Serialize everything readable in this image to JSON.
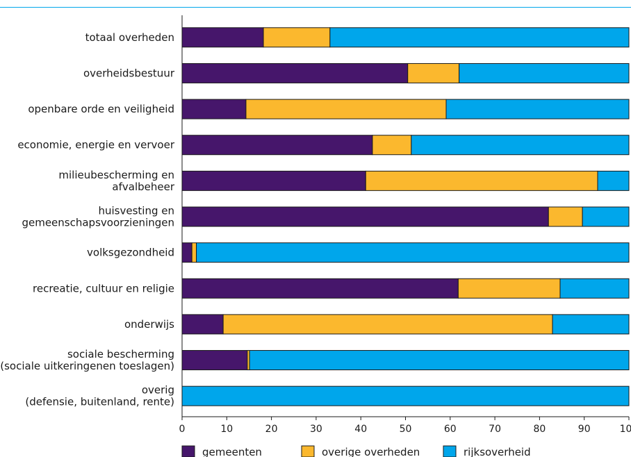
{
  "chart_data": {
    "type": "bar",
    "orientation": "horizontal",
    "stacked": true,
    "categories": [
      [
        "totaal overheden"
      ],
      [
        "overheidsbestuur"
      ],
      [
        "openbare orde en veiligheid"
      ],
      [
        "economie, energie en vervoer"
      ],
      [
        "milieubescherming en",
        "afvalbeheer"
      ],
      [
        "huisvesting en",
        "gemeenschapsvoorzieningen"
      ],
      [
        "volksgezondheid"
      ],
      [
        "recreatie, cultuur en religie"
      ],
      [
        "onderwijs"
      ],
      [
        "sociale bescherming",
        "(sociale uitkeringenen toeslagen)"
      ],
      [
        "overig",
        "(defensie, buitenland, rente)"
      ]
    ],
    "series": [
      {
        "name": "gemeenten",
        "color": "#46166b",
        "values": [
          18.2,
          50.5,
          14.3,
          42.6,
          41.1,
          82.0,
          2.2,
          61.8,
          9.2,
          14.6,
          0
        ]
      },
      {
        "name": "overige overheden",
        "color": "#fbb82e",
        "values": [
          14.9,
          11.5,
          44.8,
          8.7,
          51.9,
          7.6,
          1.0,
          22.8,
          73.7,
          0.5,
          0
        ]
      },
      {
        "name": "rijksoverheid",
        "color": "#00a6eb",
        "values": [
          66.9,
          38.0,
          40.9,
          48.7,
          7.0,
          10.4,
          96.8,
          15.4,
          17.1,
          84.9,
          100
        ]
      }
    ],
    "xlim": [
      0,
      100
    ],
    "xticks": [
      "0",
      "10",
      "20",
      "30",
      "40",
      "50",
      "60",
      "70",
      "80",
      "90",
      "100"
    ],
    "grid": false,
    "legend_position": "bottom",
    "colors": {
      "accent_rule": "#00a6eb",
      "axis": "#1a1a1a"
    }
  }
}
